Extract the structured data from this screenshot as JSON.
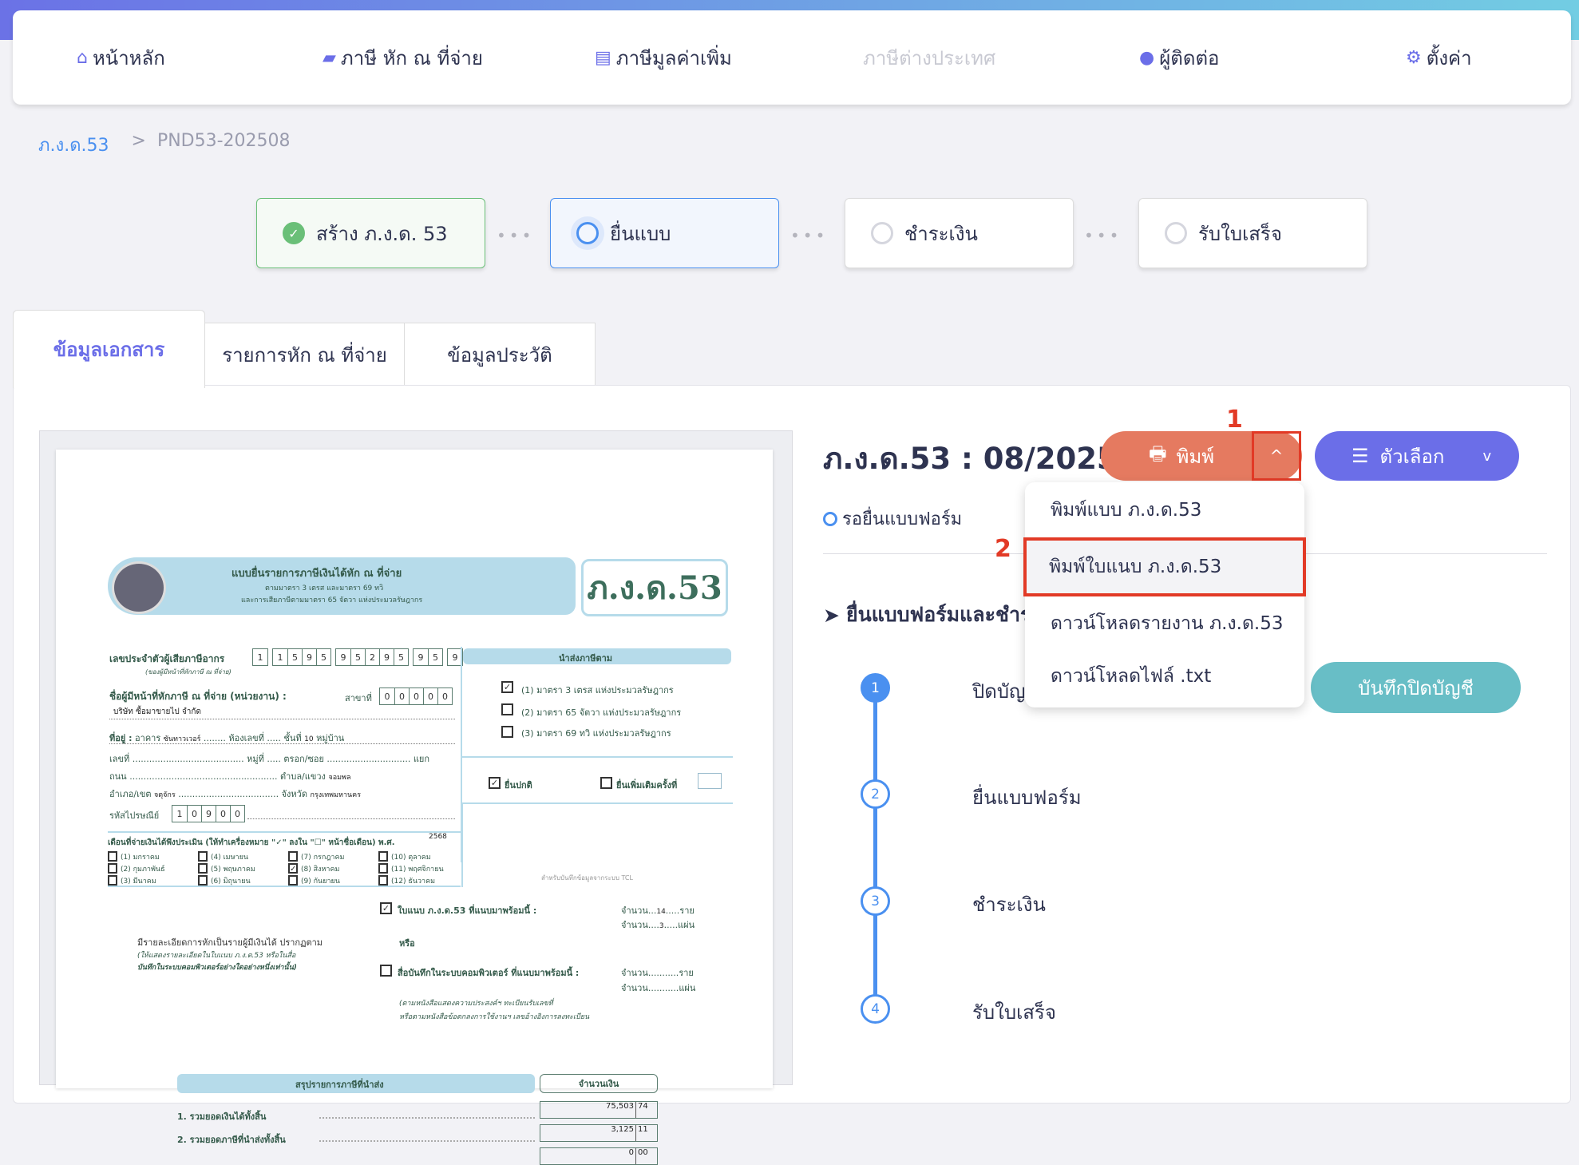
{
  "nav": {
    "items": [
      {
        "label": "หน้าหลัก",
        "icon": "home-icon",
        "glyph": "⌂"
      },
      {
        "label": "ภาษี หัก ณ ที่จ่าย",
        "icon": "wallet-icon",
        "glyph": "▰"
      },
      {
        "label": "ภาษีมูลค่าเพิ่ม",
        "icon": "document-icon",
        "glyph": "▤"
      },
      {
        "label": "ภาษีต่างประเทศ",
        "icon": "",
        "glyph": ""
      },
      {
        "label": "ผู้ติดต่อ",
        "icon": "user-icon",
        "glyph": "●"
      },
      {
        "label": "ตั้งค่า",
        "icon": "gear-icon",
        "glyph": "⚙"
      }
    ]
  },
  "breadcrumb": {
    "parent": "ภ.ง.ด.53",
    "separator": ">",
    "current": "PND53-202508"
  },
  "steps": [
    {
      "label": "สร้าง ภ.ง.ด. 53",
      "state": "done"
    },
    {
      "label": "ยื่นแบบ",
      "state": "current"
    },
    {
      "label": "ชำระเงิน",
      "state": "pending"
    },
    {
      "label": "รับใบเสร็จ",
      "state": "pending"
    }
  ],
  "tabs": [
    {
      "label": "ข้อมูลเอกสาร",
      "active": true
    },
    {
      "label": "รายการหัก ณ ที่จ่าย"
    },
    {
      "label": "ข้อมูลประวัติ"
    }
  ],
  "document": {
    "title": "ภ.ง.ด.53 : 08/2025",
    "status": "รอยื่นแบบฟอร์ม"
  },
  "print": {
    "label": "พิมพ์",
    "caret": "^",
    "icon": "printer-icon"
  },
  "options": {
    "label": "ตัวเลือก",
    "icon": "menu-icon",
    "caret": "v"
  },
  "annotations": {
    "one": "1",
    "two": "2"
  },
  "dropdown": {
    "items": [
      "พิมพ์แบบ ภ.ง.ด.53",
      "พิมพ์ใบแนบ ภ.ง.ด.53",
      "ดาวน์โหลดรายงาน ภ.ง.ด.53",
      "ดาวน์โหลดไฟล์ .txt"
    ],
    "highlighted": 1
  },
  "section": {
    "heading": "ยื่นแบบฟอร์มและชำระเงิน",
    "icon": "paper-plane-icon"
  },
  "timeline": [
    {
      "num": "1",
      "label": "ปิดบัญชี"
    },
    {
      "num": "2",
      "label": "ยื่นแบบฟอร์ม"
    },
    {
      "num": "3",
      "label": "ชำระเงิน"
    },
    {
      "num": "4",
      "label": "รับใบเสร็จ"
    }
  ],
  "close_account": {
    "label": "บันทึกปิดบัญชี"
  },
  "colors": {
    "accent": "#6b6ee8",
    "print": "#e57a60",
    "teal": "#68bec6",
    "blue": "#4a90f0",
    "success": "#6abf78",
    "annotation": "#e23a26"
  },
  "form": {
    "title": "แบบยื่นรายการภาษีเงินได้หัก ณ ที่จ่าย",
    "subtitle1": "ตามมาตรา 3 เตรส และมาตรา 69 ทวิ",
    "subtitle2": "และการเสียภาษีตามมาตรา 65 จัตวา แห่งประมวลรัษฎากร",
    "code": "ภ.ง.ด.53",
    "tin_label": "เลขประจำตัวผู้เสียภาษีอากร",
    "tin_sub": "(ของผู้มีหน้าที่หักภาษี ณ ที่จ่าย)",
    "tin_groups": [
      [
        "1"
      ],
      [
        "1",
        "5",
        "9",
        "5"
      ],
      [
        "9",
        "5",
        "2",
        "9",
        "5"
      ],
      [
        "9",
        "5"
      ],
      [
        "9"
      ]
    ],
    "name_label": "ชื่อผู้มีหน้าที่หักภาษี ณ ที่จ่าย (หน่วยงาน) :",
    "branch_label": "สาขาที่",
    "branch_digits": [
      "0",
      "0",
      "0",
      "0",
      "0"
    ],
    "company": "บริษัท ซื้อมาขายไป จำกัด",
    "address_label": "ที่อยู่ :",
    "building_label": "อาคาร",
    "building": "ซันทาวเวอร์",
    "room_label": "ห้องเลขที่",
    "floor_label": "ชั้นที่",
    "floor": "10",
    "village_label": "หมู่บ้าน",
    "no_label": "เลขที่",
    "moo_label": "หมู่ที่",
    "soi_label": "ตรอก/ซอย",
    "junction_label": "แยก",
    "road_label": "ถนน",
    "subdistrict_label": "ตำบล/แขวง",
    "subdistrict": "จอมพล",
    "district_label": "อำเภอ/เขต",
    "district": "จตุจักร",
    "province_label": "จังหวัด",
    "province": "กรุงเทพมหานคร",
    "postal_label": "รหัสไปรษณีย์",
    "postal_digits": [
      "1",
      "0",
      "9",
      "0",
      "0"
    ],
    "submit_header": "นำส่งภาษีตาม",
    "submit_options": [
      {
        "label": "(1) มาตรา 3 เตรส แห่งประมวลรัษฎากร",
        "checked": true
      },
      {
        "label": "(2) มาตรา 65 จัตวา แห่งประมวลรัษฎากร",
        "checked": false
      },
      {
        "label": "(3) มาตรา 69 ทวิ แห่งประมวลรัษฎากร",
        "checked": false
      }
    ],
    "filing_normal": "ยื่นปกติ",
    "filing_additional": "ยื่นเพิ่มเติมครั้งที่",
    "months_label": "เดือนที่จ่ายเงินได้พึงประเมิน (ให้ทำเครื่องหมาย \"✓\" ลงใน \"☐\" หน้าชื่อเดือน) พ.ศ.",
    "year": "2568",
    "months": [
      "(1) มกราคม",
      "(2) กุมภาพันธ์",
      "(3) มีนาคม",
      "(4) เมษายน",
      "(5) พฤษภาคม",
      "(6) มิถุนายน",
      "(7) กรกฎาคม",
      "(8) สิงหาคม",
      "(9) กันยายน",
      "(10) ตุลาคม",
      "(11) พฤศจิกายน",
      "(12) ธันวาคม"
    ],
    "checked_month": 7,
    "tcl_note": "สำหรับบันทึกข้อมูลจากระบบ TCL",
    "detail_text1": "มีรายละเอียดการหักเป็นรายผู้มีเงินได้ ปรากฏตาม",
    "detail_text2": "(ให้แสดงรายละเอียดในใบแนบ ภ.ง.ด.53 หรือในสื่อ",
    "detail_text3": "บันทึกในระบบคอมพิวเตอร์อย่างใดอย่างหนึ่งเท่านั้น)",
    "attach_label": "ใบแนบ ภ.ง.ด.53 ที่แนบมาพร้อมนี้ :",
    "count_label": "จำนวน",
    "persons_unit": "ราย",
    "sheets_unit": "แผ่น",
    "attach_persons": "14",
    "attach_sheets": "3",
    "or": "หรือ",
    "media_label": "สื่อบันทึกในระบบคอมพิวเตอร์ ที่แนบมาพร้อมนี้ :",
    "media_note1": "(ตามหนังสือแสดงความประสงค์ฯ ทะเบียนรับเลขที่",
    "media_note2": "หรือตามหนังสือข้อตกลงการใช้งานฯ เลขอ้างอิงการลงทะเบียน",
    "summary_header": "สรุปรายการภาษีที่นำส่ง",
    "amount_header": "จำนวนเงิน",
    "summary_rows": [
      {
        "label": "1. รวมยอดเงินได้ทั้งสิ้น",
        "baht": "75,503",
        "satang": "74"
      },
      {
        "label": "2. รวมยอดภาษีที่นำส่งทั้งสิ้น",
        "baht": "3,125",
        "satang": "11"
      },
      {
        "label": "",
        "baht": "0",
        "satang": "00"
      }
    ]
  }
}
